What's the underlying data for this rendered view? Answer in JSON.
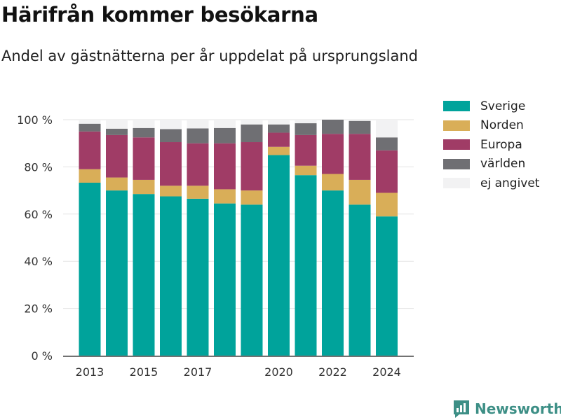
{
  "title": "Härifrån kommer besökarna",
  "subtitle": "Andel av gästnätterna per år uppdelat på ursprungsland",
  "brand": {
    "name": "Newsworthy",
    "icon": "newsworthy-logo-icon",
    "color": "#3d8f86"
  },
  "chart_data": {
    "type": "bar",
    "stacked": true,
    "x": [
      2013,
      2014,
      2015,
      2016,
      2017,
      2018,
      2019,
      2020,
      2021,
      2022,
      2023,
      2024
    ],
    "x_tick_labels": [
      "2013",
      "2015",
      "2017",
      "2020",
      "2022",
      "2024"
    ],
    "y_tick_labels": [
      "0 %",
      "20 %",
      "40 %",
      "60 %",
      "80 %",
      "100 %"
    ],
    "ylim": [
      0,
      100
    ],
    "grid": true,
    "legend_position": "right",
    "series": [
      {
        "name": "Sverige",
        "color": "#00a39b",
        "values": [
          73.3,
          70.0,
          68.5,
          67.5,
          66.5,
          64.5,
          64.0,
          85.0,
          76.5,
          70.0,
          64.0,
          59.0
        ]
      },
      {
        "name": "Norden",
        "color": "#d9ae58",
        "values": [
          5.7,
          5.5,
          6.0,
          4.5,
          5.5,
          6.0,
          6.0,
          3.5,
          4.0,
          7.0,
          10.5,
          10.0
        ]
      },
      {
        "name": "Europa",
        "color": "#a03c66",
        "values": [
          16.0,
          18.0,
          18.0,
          18.5,
          18.0,
          19.5,
          20.5,
          6.0,
          13.0,
          17.0,
          19.5,
          18.0
        ]
      },
      {
        "name": "världen",
        "color": "#6f6f73",
        "values": [
          3.3,
          2.7,
          4.0,
          5.5,
          6.3,
          6.5,
          7.5,
          3.5,
          5.0,
          6.0,
          5.5,
          5.5
        ]
      },
      {
        "name": "ej angivet",
        "color": "#f2f2f3",
        "values": [
          1.7,
          3.8,
          3.5,
          4.0,
          3.7,
          3.5,
          2.0,
          2.0,
          1.5,
          0.0,
          0.5,
          7.5
        ]
      }
    ]
  }
}
